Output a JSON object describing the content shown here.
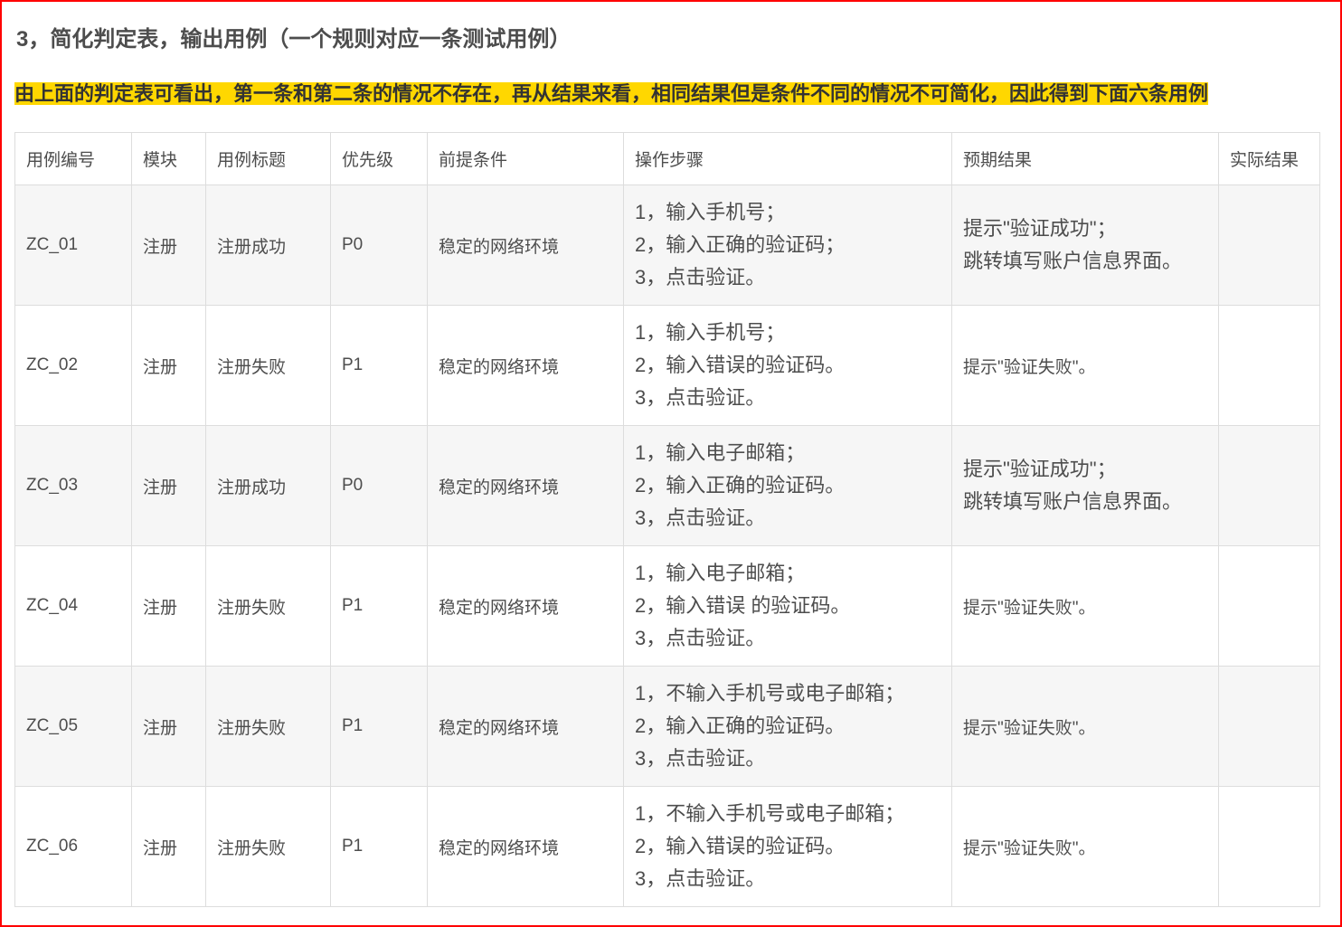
{
  "heading": "3，简化判定表，输出用例（一个规则对应一条测试用例）",
  "note": "由上面的判定表可看出，第一条和第二条的情况不存在，再从结果来看，相同结果但是条件不同的情况不可简化，因此得到下面六条用例",
  "colors": {
    "highlight": "#ffd700",
    "frame": "#ff0000"
  },
  "table": {
    "headers": [
      "用例编号",
      "模块",
      "用例标题",
      "优先级",
      "前提条件",
      "操作步骤",
      "预期结果",
      "实际结果"
    ],
    "rows": [
      {
        "id": "ZC_01",
        "module": "注册",
        "title": "注册成功",
        "priority": "P0",
        "precondition": "稳定的网络环境",
        "steps": [
          "1，输入手机号；",
          "2，输入正确的验证码；",
          "3，点击验证。"
        ],
        "expected": [
          "提示\"验证成功\"；",
          "跳转填写账户信息界面。"
        ],
        "actual": ""
      },
      {
        "id": "ZC_02",
        "module": "注册",
        "title": "注册失败",
        "priority": "P1",
        "precondition": "稳定的网络环境",
        "steps": [
          "1，输入手机号；",
          "2，输入错误的验证码。",
          "3，点击验证。"
        ],
        "expected": [
          "提示\"验证失败\"。"
        ],
        "actual": ""
      },
      {
        "id": "ZC_03",
        "module": "注册",
        "title": "注册成功",
        "priority": "P0",
        "precondition": "稳定的网络环境",
        "steps": [
          "1，输入电子邮箱；",
          "2，输入正确的验证码。",
          "3，点击验证。"
        ],
        "expected": [
          "提示\"验证成功\"；",
          "跳转填写账户信息界面。"
        ],
        "actual": ""
      },
      {
        "id": "ZC_04",
        "module": "注册",
        "title": "注册失败",
        "priority": "P1",
        "precondition": "稳定的网络环境",
        "steps": [
          "1，输入电子邮箱；",
          "2，输入错误 的验证码。",
          "3，点击验证。"
        ],
        "expected": [
          "提示\"验证失败\"。"
        ],
        "actual": ""
      },
      {
        "id": "ZC_05",
        "module": "注册",
        "title": "注册失败",
        "priority": "P1",
        "precondition": "稳定的网络环境",
        "steps": [
          "1，不输入手机号或电子邮箱；",
          "2，输入正确的验证码。",
          "3，点击验证。"
        ],
        "expected": [
          "提示\"验证失败\"。"
        ],
        "actual": ""
      },
      {
        "id": "ZC_06",
        "module": "注册",
        "title": "注册失败",
        "priority": "P1",
        "precondition": "稳定的网络环境",
        "steps": [
          "1，不输入手机号或电子邮箱；",
          "2，输入错误的验证码。",
          "3，点击验证。"
        ],
        "expected": [
          "提示\"验证失败\"。"
        ],
        "actual": ""
      }
    ]
  }
}
